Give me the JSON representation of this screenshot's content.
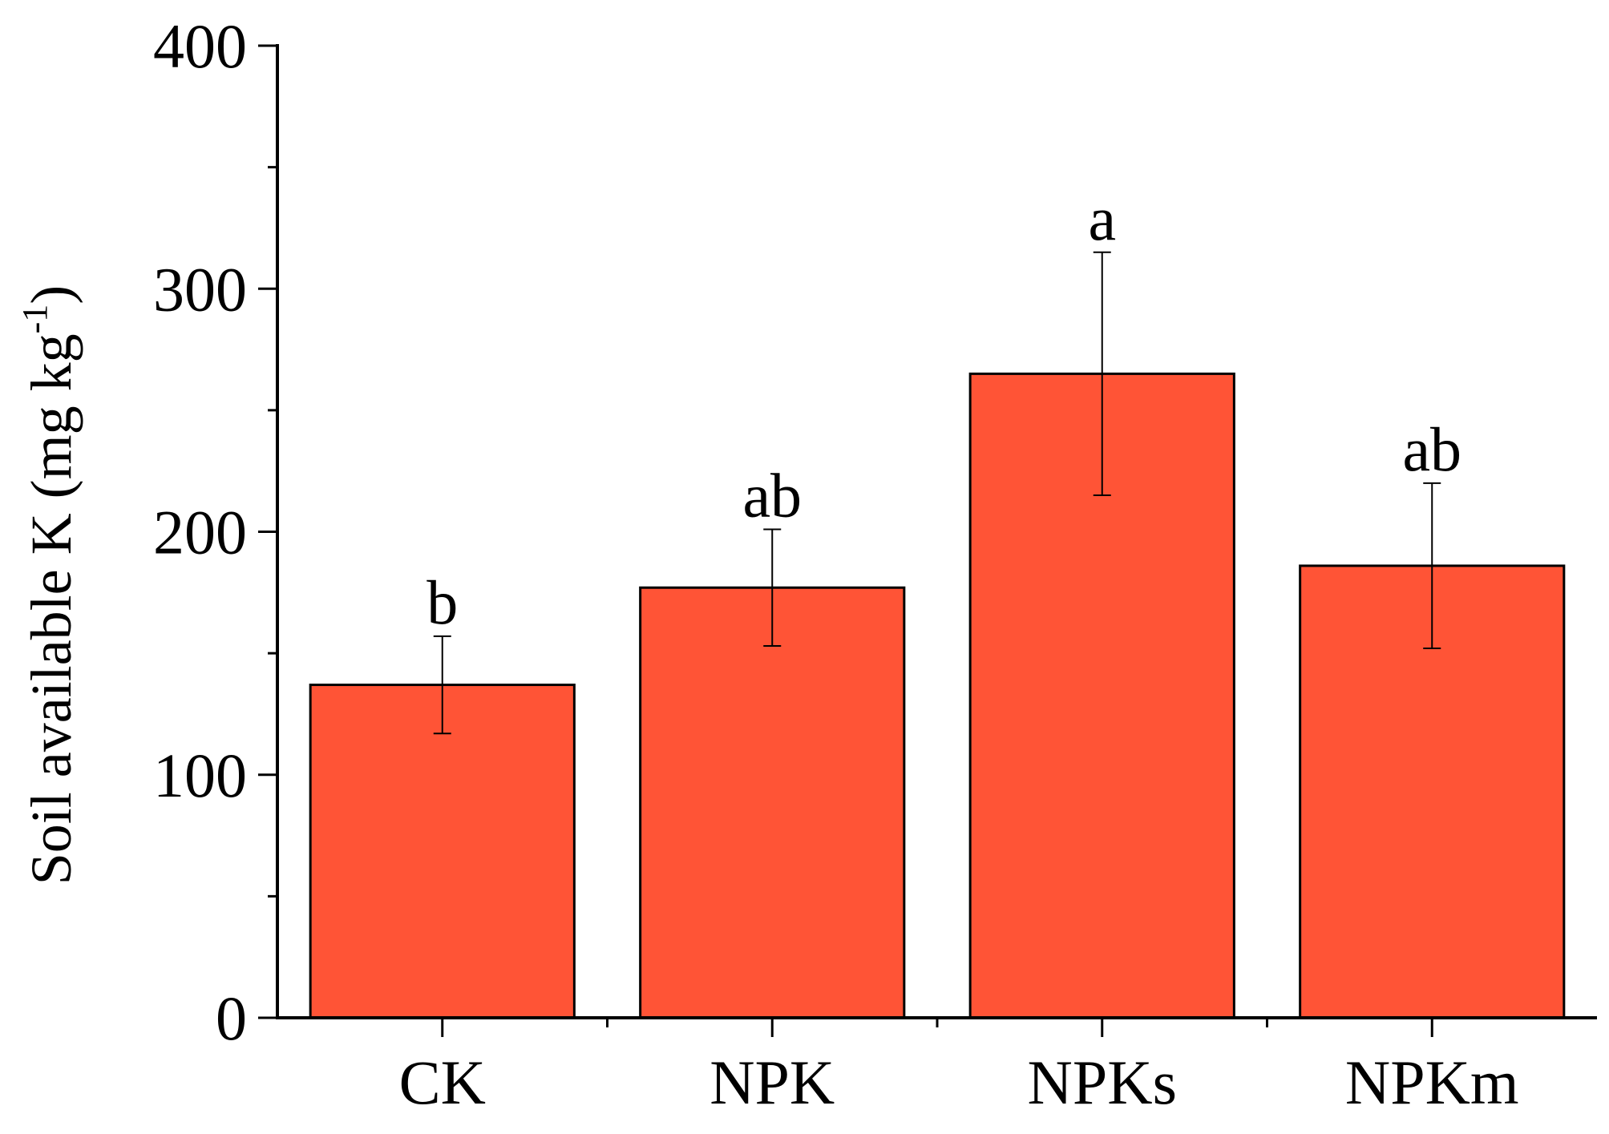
{
  "chart_data": {
    "type": "bar",
    "categories": [
      "CK",
      "NPK",
      "NPKs",
      "NPKm"
    ],
    "values": [
      137,
      177,
      265,
      186
    ],
    "errors": [
      20,
      24,
      50,
      34
    ],
    "significance_letters": [
      "b",
      "ab",
      "a",
      "ab"
    ],
    "ylabel": {
      "main": "Soil available K (mg kg",
      "superscript": "-1",
      "close": ")"
    },
    "ylim": [
      0,
      400
    ],
    "yticks": [
      0,
      100,
      200,
      300,
      400
    ],
    "yticks_minor": [
      50,
      150,
      250,
      350
    ],
    "bar_color": "#ff5436",
    "edge_color": "#000000",
    "grid": false
  }
}
